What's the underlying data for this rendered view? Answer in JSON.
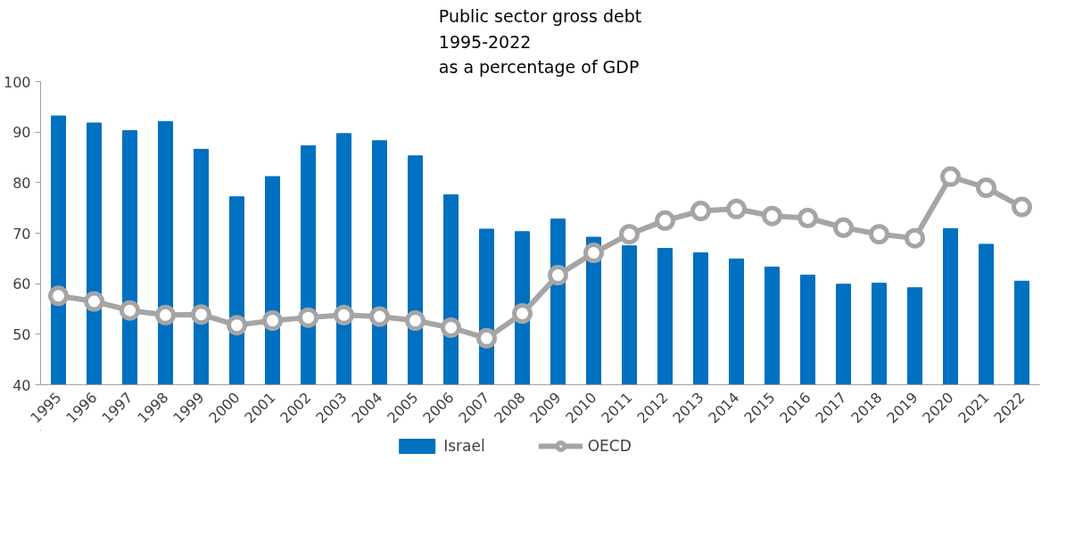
{
  "chart_data": {
    "type": "bar",
    "title": "Public sector gross debt\n1995-2022\nas a percentage of GDP",
    "categories": [
      "1995",
      "1996",
      "1997",
      "1998",
      "1999",
      "2000",
      "2001",
      "2002",
      "2003",
      "2004",
      "2005",
      "2006",
      "2007",
      "2008",
      "2009",
      "2010",
      "2011",
      "2012",
      "2013",
      "2014",
      "2015",
      "2016",
      "2017",
      "2018",
      "2019",
      "2020",
      "2021",
      "2022"
    ],
    "series": [
      {
        "name": "Israel",
        "color": "#0070c0",
        "values": [
          93.2,
          91.8,
          90.3,
          92.1,
          86.6,
          77.2,
          81.2,
          87.3,
          89.7,
          88.3,
          85.3,
          77.6,
          70.8,
          70.3,
          72.8,
          69.2,
          67.5,
          67.0,
          66.1,
          64.9,
          63.3,
          61.7,
          59.9,
          60.1,
          59.2,
          70.9,
          67.8,
          60.5
        ]
      },
      {
        "name": "OECD",
        "type": "line",
        "color": "#a5a5a5",
        "marker": "circle",
        "values": [
          57.6,
          56.5,
          54.7,
          53.8,
          53.9,
          51.8,
          52.7,
          53.3,
          53.8,
          53.5,
          52.7,
          51.3,
          49.2,
          54.1,
          61.7,
          66.1,
          69.8,
          72.5,
          74.4,
          74.8,
          73.4,
          73.0,
          71.1,
          69.8,
          69.0,
          81.2,
          79.0,
          75.2
        ]
      }
    ],
    "ylim": [
      40,
      100
    ],
    "yticks": [
      40,
      50,
      60,
      70,
      80,
      90,
      100
    ],
    "grid": false,
    "legend": "bottom"
  }
}
